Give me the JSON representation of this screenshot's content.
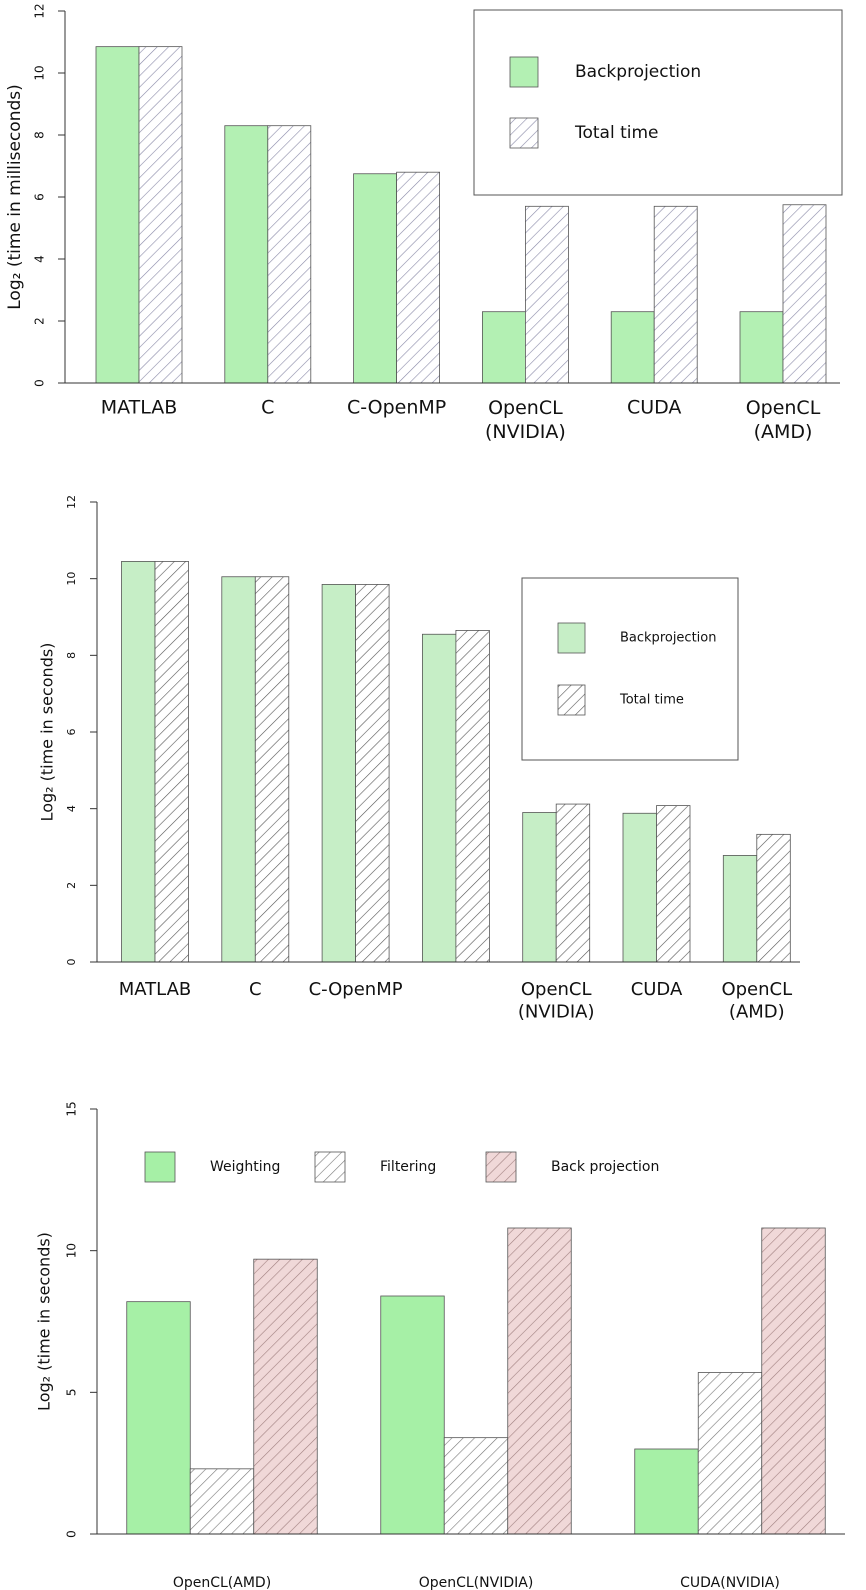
{
  "chart_data": [
    {
      "type": "bar",
      "y_label": "Log₂ (time in milliseconds)",
      "categories": [
        "MATLAB",
        "C",
        "C-OpenMP",
        "OpenCL\n(NVIDIA)",
        "CUDA",
        "OpenCL\n(AMD)"
      ],
      "series": [
        {
          "name": "Backprojection",
          "color": "#b3f0b3",
          "values": [
            10.85,
            8.3,
            6.75,
            2.3,
            2.3,
            2.3
          ]
        },
        {
          "name": "Total time",
          "color": "#8a8aa8",
          "hatch": true,
          "fill": "#ffffff",
          "values": [
            10.85,
            8.3,
            6.8,
            5.7,
            5.7,
            5.75
          ]
        }
      ],
      "ylim": [
        0,
        12
      ],
      "yticks": [
        0,
        2,
        4,
        6,
        8,
        10,
        12
      ],
      "legend": "upper right"
    },
    {
      "type": "bar",
      "y_label": "Log₂ (time in seconds)",
      "categories": [
        "MATLAB",
        "C",
        "C-OpenMP",
        null,
        "OpenCL\n(NVIDIA)",
        "CUDA",
        "OpenCL\n(AMD)"
      ],
      "series": [
        {
          "name": "Backprojection",
          "color": "#c6eec6",
          "values": [
            10.45,
            10.05,
            9.85,
            8.55,
            3.9,
            3.88,
            2.78
          ]
        },
        {
          "name": "Total time",
          "color": "#555555",
          "hatch": true,
          "fill": "#ffffff",
          "values": [
            10.45,
            10.05,
            9.85,
            8.65,
            4.12,
            4.08,
            3.33
          ]
        }
      ],
      "ylim": [
        0,
        12
      ],
      "yticks": [
        0,
        2,
        4,
        6,
        8,
        10,
        12
      ],
      "legend": "right"
    },
    {
      "type": "bar",
      "y_label": "Log₂ (time in seconds)",
      "categories": [
        "OpenCL(AMD)",
        "OpenCL(NVIDIA)",
        "CUDA(NVIDIA)"
      ],
      "series": [
        {
          "name": "Weighting",
          "color": "#a6f0a6",
          "values": [
            8.2,
            8.4,
            3.0
          ]
        },
        {
          "name": "Filtering",
          "color": "#777777",
          "hatch": true,
          "fill": "#ffffff",
          "values": [
            2.3,
            3.4,
            5.7
          ]
        },
        {
          "name": "Back projection",
          "color": "#a08080",
          "hatch": true,
          "fill": "#f0d8d8",
          "values": [
            9.7,
            10.8,
            10.8
          ]
        }
      ],
      "ylim": [
        0,
        15
      ],
      "yticks": [
        0,
        5,
        10,
        15
      ],
      "legend": "top"
    }
  ]
}
